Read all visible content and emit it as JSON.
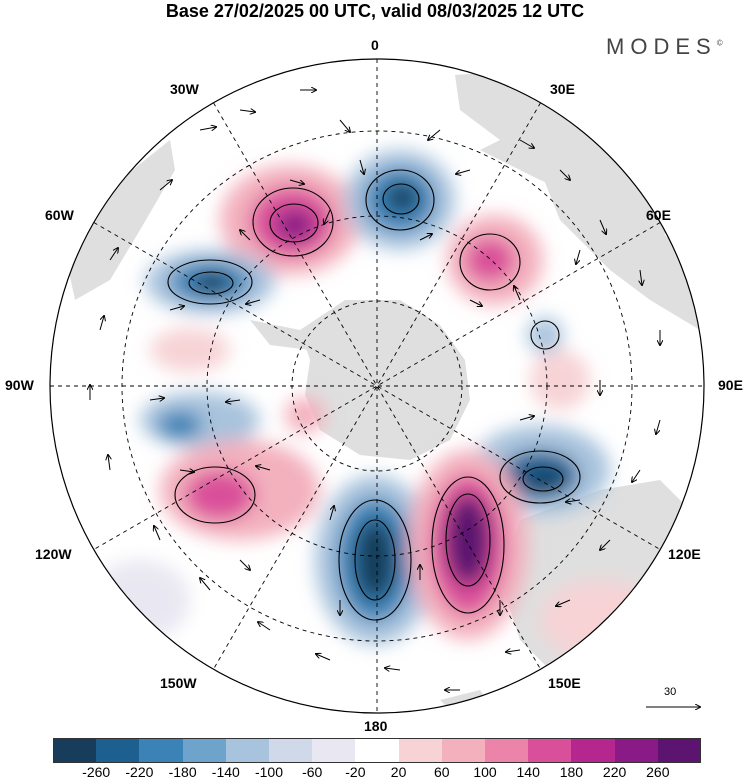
{
  "title": "Base 27/02/2025 00 UTC, valid 08/03/2025 12 UTC",
  "brand": "MODES",
  "brand_mark": "©",
  "longitude_labels": {
    "lon0": "0",
    "lon30e": "30E",
    "lon60e": "60E",
    "lon90e": "90E",
    "lon120e": "120E",
    "lon150e": "150E",
    "lon180": "180",
    "lon150w": "150W",
    "lon120w": "120W",
    "lon90w": "90W",
    "lon60w": "60W",
    "lon30w": "30W"
  },
  "reference_vector": "30",
  "colorbar": {
    "ticks": [
      "-260",
      "-220",
      "-180",
      "-140",
      "-100",
      "-60",
      "-20",
      "20",
      "60",
      "100",
      "140",
      "180",
      "220",
      "260"
    ],
    "colors": [
      "#173c5c",
      "#1d5f8f",
      "#3b82b6",
      "#6ea3cc",
      "#a8c3dd",
      "#cfd9ea",
      "#e9e7f1",
      "#ffffff",
      "#f7d3d6",
      "#f3b0bd",
      "#ec83a9",
      "#da4f9a",
      "#b5268e",
      "#8a1b86",
      "#5c1470"
    ]
  },
  "colors": {
    "land": "#dcdcdc",
    "ocean": "#ffffff",
    "contour": "#000000"
  }
}
